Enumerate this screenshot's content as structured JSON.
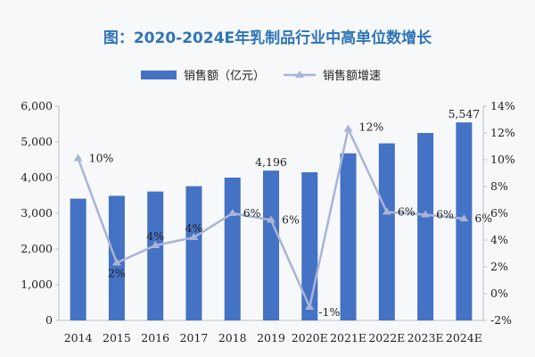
{
  "chart_data": {
    "type": "bar",
    "title": "图：2020-2024E年乳制品行业中高单位数增长",
    "categories": [
      "2014",
      "2015",
      "2016",
      "2017",
      "2018",
      "2019",
      "2020E",
      "2021E",
      "2022E",
      "2023E",
      "2024E"
    ],
    "series": [
      {
        "name": "销售额（亿元）",
        "type": "bar",
        "axis": "left",
        "color": "#4472c4",
        "values": [
          3410,
          3490,
          3610,
          3760,
          4000,
          4196,
          4150,
          4680,
          4960,
          5250,
          5547
        ],
        "data_labels": {
          "5": "4,196",
          "10": "5,547"
        }
      },
      {
        "name": "销售额增速",
        "type": "line",
        "axis": "right",
        "color": "#a9b4d6",
        "values": [
          10.1,
          2.3,
          3.6,
          4.2,
          6.0,
          5.5,
          -1.0,
          12.3,
          6.1,
          5.9,
          5.6
        ],
        "data_labels": [
          "10%",
          "2%",
          "4%",
          "4%",
          "6%",
          "6%",
          "-1%",
          "12%",
          "6%",
          "6%",
          "6%"
        ]
      }
    ],
    "y_left": {
      "min": 0,
      "max": 6000,
      "ticks": [
        "0",
        "1,000",
        "2,000",
        "3,000",
        "4,000",
        "5,000",
        "6,000"
      ]
    },
    "y_right": {
      "min": -2,
      "max": 14,
      "ticks": [
        "-2%",
        "0%",
        "2%",
        "4%",
        "6%",
        "8%",
        "10%",
        "12%",
        "14%"
      ]
    },
    "legend_position": "top-center",
    "grid": false
  }
}
